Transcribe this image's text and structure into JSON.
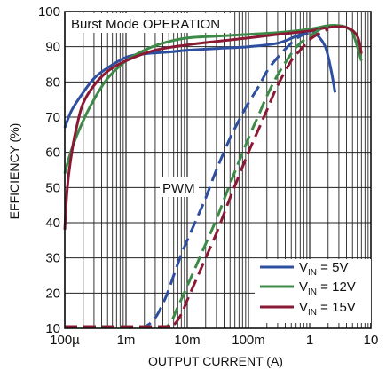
{
  "chart_data": {
    "type": "line",
    "title": "",
    "xlabel": "OUTPUT CURRENT (A)",
    "ylabel": "EFFICIENCY (%)",
    "xscale": "log",
    "xlim": [
      0.0001,
      10
    ],
    "ylim": [
      10,
      100
    ],
    "grid": true,
    "legend_position": "bottom-right",
    "x_tick_labels": [
      "100µ",
      "1m",
      "10m",
      "100m",
      "1",
      "10"
    ],
    "x_tick_values": [
      0.0001,
      0.001,
      0.01,
      0.1,
      1,
      10
    ],
    "y_tick_values": [
      10,
      20,
      30,
      40,
      50,
      60,
      70,
      80,
      90,
      100
    ],
    "annotations": {
      "burst": "Burst Mode OPERATION",
      "pwm": "PWM"
    },
    "legend": {
      "vin5": {
        "prefix": "V",
        "sub": "IN",
        "suffix": " = 5V"
      },
      "vin12": {
        "prefix": "V",
        "sub": "IN",
        "suffix": " = 12V"
      },
      "vin15": {
        "prefix": "V",
        "sub": "IN",
        "suffix": " = 15V"
      }
    },
    "series": [
      {
        "key": "vin5",
        "color": "#2e4fa0",
        "mode": "burst",
        "x": [
          0.0001,
          0.00013,
          0.0002,
          0.0003,
          0.0005,
          0.001,
          0.002,
          0.005,
          0.01,
          0.03,
          0.1,
          0.3,
          0.6,
          1.0,
          1.3,
          1.8,
          2.2,
          2.6
        ],
        "y": [
          67,
          72,
          77,
          81,
          84,
          87,
          88,
          88.5,
          89,
          89.5,
          90,
          91,
          93,
          94.5,
          93.5,
          90,
          84,
          77
        ]
      },
      {
        "key": "vin12",
        "color": "#3d8a48",
        "mode": "burst",
        "x": [
          0.0001,
          0.00013,
          0.0002,
          0.0003,
          0.0005,
          0.001,
          0.002,
          0.004,
          0.01,
          0.03,
          0.1,
          0.3,
          1.0,
          2.0,
          3.0,
          4.0,
          5.0,
          6.0,
          7.0
        ],
        "y": [
          54,
          61,
          69,
          75,
          81,
          86,
          89,
          91,
          92.5,
          93,
          93.5,
          94,
          95,
          96,
          96,
          95.5,
          94,
          90,
          86
        ]
      },
      {
        "key": "vin15",
        "color": "#8a1a34",
        "mode": "burst",
        "x": [
          0.0001,
          0.00011,
          0.00013,
          0.00016,
          0.0002,
          0.0003,
          0.0005,
          0.001,
          0.003,
          0.01,
          0.03,
          0.1,
          0.3,
          1.0,
          2.0,
          4.0,
          6.0,
          7.0
        ],
        "y": [
          38,
          50,
          60,
          68,
          74,
          79,
          83,
          86,
          89,
          90.5,
          91.5,
          92.5,
          93.5,
          94.5,
          95.5,
          95.5,
          93,
          88
        ]
      },
      {
        "key": "vin5",
        "color": "#2e4fa0",
        "mode": "pwm",
        "x": [
          0.0001,
          0.001,
          0.002,
          0.003,
          0.004,
          0.005,
          0.006,
          0.008,
          0.01,
          0.015,
          0.02,
          0.03,
          0.05,
          0.08,
          0.1,
          0.15,
          0.2,
          0.3,
          0.5,
          0.7,
          1.0
        ],
        "y": [
          10.5,
          10.5,
          10.5,
          13,
          17,
          21,
          25,
          31,
          35,
          42,
          47,
          55,
          64,
          71,
          74,
          79,
          83,
          87,
          91,
          93,
          94
        ]
      },
      {
        "key": "vin12",
        "color": "#3d8a48",
        "mode": "pwm",
        "x": [
          0.0001,
          0.003,
          0.005,
          0.007,
          0.01,
          0.015,
          0.02,
          0.03,
          0.05,
          0.1,
          0.15,
          0.2,
          0.3,
          0.5,
          0.7,
          1.0,
          1.5,
          2.0
        ],
        "y": [
          10.5,
          10.5,
          11,
          16,
          22,
          29,
          34,
          41,
          51,
          64,
          71,
          76,
          82,
          88,
          91,
          93,
          95,
          96
        ]
      },
      {
        "key": "vin15",
        "color": "#8a1a34",
        "mode": "pwm",
        "x": [
          0.0001,
          0.004,
          0.006,
          0.008,
          0.01,
          0.015,
          0.02,
          0.03,
          0.05,
          0.1,
          0.15,
          0.2,
          0.3,
          0.5,
          0.7,
          1.0,
          1.5,
          2.0
        ],
        "y": [
          10.5,
          10.5,
          11,
          14,
          18,
          25,
          30,
          37,
          47,
          60,
          67,
          72,
          79,
          86,
          89,
          92,
          94,
          95
        ]
      }
    ]
  }
}
